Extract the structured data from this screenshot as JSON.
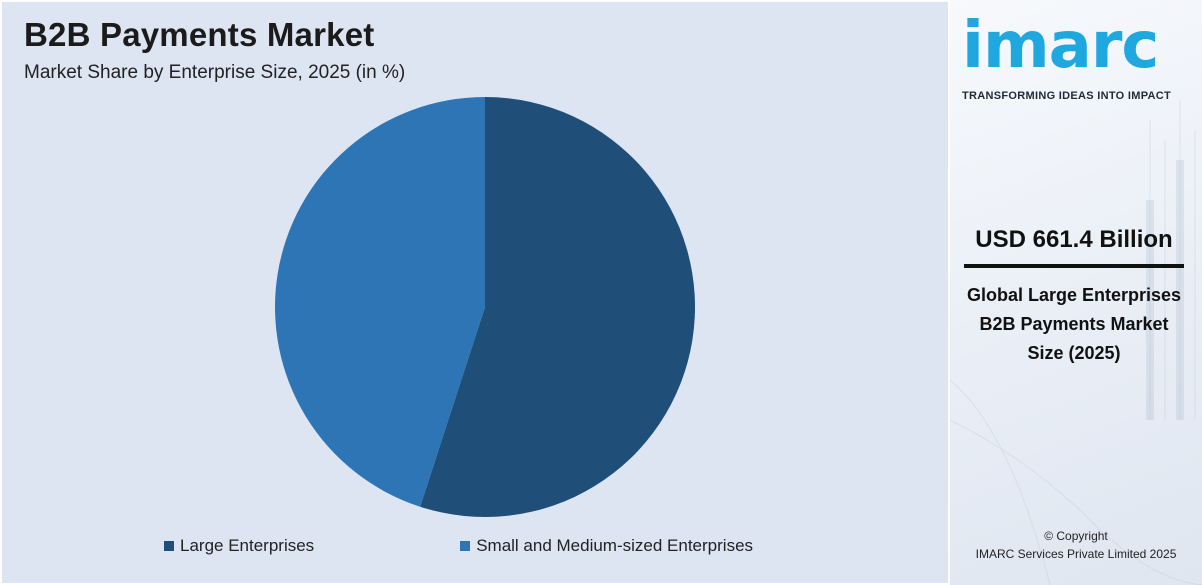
{
  "chart_data": {
    "type": "pie",
    "title": "B2B Payments Market",
    "subtitle": "Market Share by Enterprise Size, 2025 (in %)",
    "categories": [
      "Large Enterprises",
      "Small and Medium-sized Enterprises"
    ],
    "values": [
      55,
      45
    ],
    "colors": [
      "#1f4e79",
      "#2e75b6"
    ],
    "start_angle_deg": 0,
    "legend_position": "bottom"
  },
  "brand": {
    "name": "imarc",
    "tagline": "TRANSFORMING IDEAS INTO IMPACT",
    "color": "#1fa8e0"
  },
  "metric": {
    "value": "USD 661.4 Billion",
    "description": "Global Large Enterprises B2B Payments Market Size (2025)"
  },
  "footer": {
    "line1": "© Copyright",
    "line2": "IMARC Services Private Limited 2025"
  }
}
